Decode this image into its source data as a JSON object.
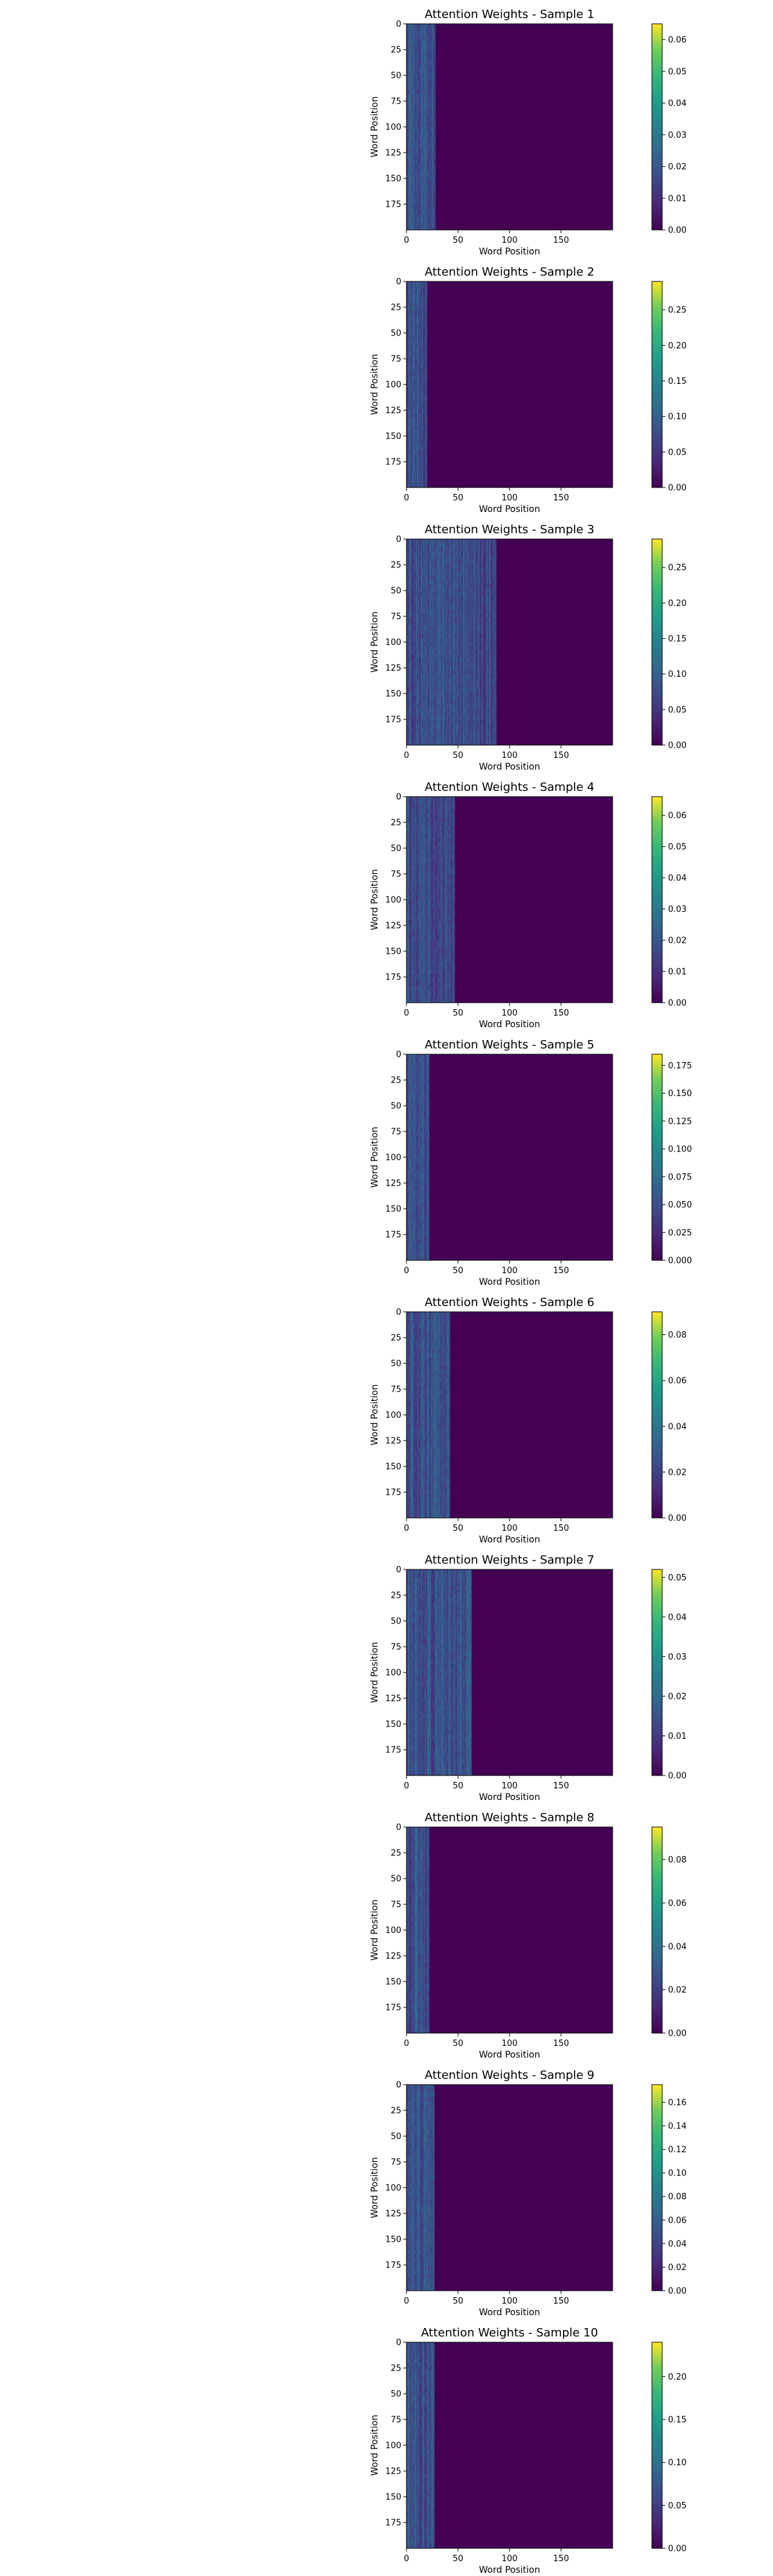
{
  "chart_data": [
    {
      "type": "heatmap",
      "title": "Attention Weights - Sample 1",
      "xlabel": "Word Position",
      "ylabel": "Word Position",
      "xlim": [
        0,
        200
      ],
      "ylim": [
        200,
        0
      ],
      "x_ticks": [
        0,
        50,
        100,
        150
      ],
      "y_ticks": [
        0,
        25,
        50,
        75,
        100,
        125,
        150,
        175
      ],
      "colormap": "viridis",
      "attended_columns": 28,
      "colorbar": {
        "min": 0.0,
        "max": 0.065,
        "ticks": [
          "0.00",
          "0.01",
          "0.02",
          "0.03",
          "0.04",
          "0.05",
          "0.06"
        ],
        "tick_values": [
          0.0,
          0.01,
          0.02,
          0.03,
          0.04,
          0.05,
          0.06
        ]
      }
    },
    {
      "type": "heatmap",
      "title": "Attention Weights - Sample 2",
      "xlabel": "Word Position",
      "ylabel": "Word Position",
      "xlim": [
        0,
        200
      ],
      "ylim": [
        200,
        0
      ],
      "x_ticks": [
        0,
        50,
        100,
        150
      ],
      "y_ticks": [
        0,
        25,
        50,
        75,
        100,
        125,
        150,
        175
      ],
      "colormap": "viridis",
      "attended_columns": 20,
      "colorbar": {
        "min": 0.0,
        "max": 0.29,
        "ticks": [
          "0.00",
          "0.05",
          "0.10",
          "0.15",
          "0.20",
          "0.25"
        ],
        "tick_values": [
          0.0,
          0.05,
          0.1,
          0.15,
          0.2,
          0.25
        ]
      }
    },
    {
      "type": "heatmap",
      "title": "Attention Weights - Sample 3",
      "xlabel": "Word Position",
      "ylabel": "Word Position",
      "xlim": [
        0,
        200
      ],
      "ylim": [
        200,
        0
      ],
      "x_ticks": [
        0,
        50,
        100,
        150
      ],
      "y_ticks": [
        0,
        25,
        50,
        75,
        100,
        125,
        150,
        175
      ],
      "colormap": "viridis",
      "attended_columns": 87,
      "colorbar": {
        "min": 0.0,
        "max": 0.29,
        "ticks": [
          "0.00",
          "0.05",
          "0.10",
          "0.15",
          "0.20",
          "0.25"
        ],
        "tick_values": [
          0.0,
          0.05,
          0.1,
          0.15,
          0.2,
          0.25
        ]
      }
    },
    {
      "type": "heatmap",
      "title": "Attention Weights - Sample 4",
      "xlabel": "Word Position",
      "ylabel": "Word Position",
      "xlim": [
        0,
        200
      ],
      "ylim": [
        200,
        0
      ],
      "x_ticks": [
        0,
        50,
        100,
        150
      ],
      "y_ticks": [
        0,
        25,
        50,
        75,
        100,
        125,
        150,
        175
      ],
      "colormap": "viridis",
      "attended_columns": 47,
      "colorbar": {
        "min": 0.0,
        "max": 0.066,
        "ticks": [
          "0.00",
          "0.01",
          "0.02",
          "0.03",
          "0.04",
          "0.05",
          "0.06"
        ],
        "tick_values": [
          0.0,
          0.01,
          0.02,
          0.03,
          0.04,
          0.05,
          0.06
        ]
      }
    },
    {
      "type": "heatmap",
      "title": "Attention Weights - Sample 5",
      "xlabel": "Word Position",
      "ylabel": "Word Position",
      "xlim": [
        0,
        200
      ],
      "ylim": [
        200,
        0
      ],
      "x_ticks": [
        0,
        50,
        100,
        150
      ],
      "y_ticks": [
        0,
        25,
        50,
        75,
        100,
        125,
        150,
        175
      ],
      "colormap": "viridis",
      "attended_columns": 22,
      "colorbar": {
        "min": 0.0,
        "max": 0.185,
        "ticks": [
          "0.000",
          "0.025",
          "0.050",
          "0.075",
          "0.100",
          "0.125",
          "0.150",
          "0.175"
        ],
        "tick_values": [
          0.0,
          0.025,
          0.05,
          0.075,
          0.1,
          0.125,
          0.15,
          0.175
        ]
      }
    },
    {
      "type": "heatmap",
      "title": "Attention Weights - Sample 6",
      "xlabel": "Word Position",
      "ylabel": "Word Position",
      "xlim": [
        0,
        200
      ],
      "ylim": [
        200,
        0
      ],
      "x_ticks": [
        0,
        50,
        100,
        150
      ],
      "y_ticks": [
        0,
        25,
        50,
        75,
        100,
        125,
        150,
        175
      ],
      "colormap": "viridis",
      "attended_columns": 42,
      "colorbar": {
        "min": 0.0,
        "max": 0.09,
        "ticks": [
          "0.00",
          "0.02",
          "0.04",
          "0.06",
          "0.08"
        ],
        "tick_values": [
          0.0,
          0.02,
          0.04,
          0.06,
          0.08
        ]
      }
    },
    {
      "type": "heatmap",
      "title": "Attention Weights - Sample 7",
      "xlabel": "Word Position",
      "ylabel": "Word Position",
      "xlim": [
        0,
        200
      ],
      "ylim": [
        200,
        0
      ],
      "x_ticks": [
        0,
        50,
        100,
        150
      ],
      "y_ticks": [
        0,
        25,
        50,
        75,
        100,
        125,
        150,
        175
      ],
      "colormap": "viridis",
      "attended_columns": 63,
      "colorbar": {
        "min": 0.0,
        "max": 0.052,
        "ticks": [
          "0.00",
          "0.01",
          "0.02",
          "0.03",
          "0.04",
          "0.05"
        ],
        "tick_values": [
          0.0,
          0.01,
          0.02,
          0.03,
          0.04,
          0.05
        ]
      }
    },
    {
      "type": "heatmap",
      "title": "Attention Weights - Sample 8",
      "xlabel": "Word Position",
      "ylabel": "Word Position",
      "xlim": [
        0,
        200
      ],
      "ylim": [
        200,
        0
      ],
      "x_ticks": [
        0,
        50,
        100,
        150
      ],
      "y_ticks": [
        0,
        25,
        50,
        75,
        100,
        125,
        150,
        175
      ],
      "colormap": "viridis",
      "attended_columns": 22,
      "colorbar": {
        "min": 0.0,
        "max": 0.095,
        "ticks": [
          "0.00",
          "0.02",
          "0.04",
          "0.06",
          "0.08"
        ],
        "tick_values": [
          0.0,
          0.02,
          0.04,
          0.06,
          0.08
        ]
      }
    },
    {
      "type": "heatmap",
      "title": "Attention Weights - Sample 9",
      "xlabel": "Word Position",
      "ylabel": "Word Position",
      "xlim": [
        0,
        200
      ],
      "ylim": [
        200,
        0
      ],
      "x_ticks": [
        0,
        50,
        100,
        150
      ],
      "y_ticks": [
        0,
        25,
        50,
        75,
        100,
        125,
        150,
        175
      ],
      "colormap": "viridis",
      "attended_columns": 27,
      "colorbar": {
        "min": 0.0,
        "max": 0.175,
        "ticks": [
          "0.00",
          "0.02",
          "0.04",
          "0.06",
          "0.08",
          "0.10",
          "0.12",
          "0.14",
          "0.16"
        ],
        "tick_values": [
          0.0,
          0.02,
          0.04,
          0.06,
          0.08,
          0.1,
          0.12,
          0.14,
          0.16
        ]
      }
    },
    {
      "type": "heatmap",
      "title": "Attention Weights - Sample 10",
      "xlabel": "Word Position",
      "ylabel": "Word Position",
      "xlim": [
        0,
        200
      ],
      "ylim": [
        200,
        0
      ],
      "x_ticks": [
        0,
        50,
        100,
        150
      ],
      "y_ticks": [
        0,
        25,
        50,
        75,
        100,
        125,
        150,
        175
      ],
      "colormap": "viridis",
      "attended_columns": 27,
      "colorbar": {
        "min": 0.0,
        "max": 0.24,
        "ticks": [
          "0.00",
          "0.05",
          "0.10",
          "0.15",
          "0.20"
        ],
        "tick_values": [
          0.0,
          0.05,
          0.1,
          0.15,
          0.2
        ]
      }
    }
  ]
}
